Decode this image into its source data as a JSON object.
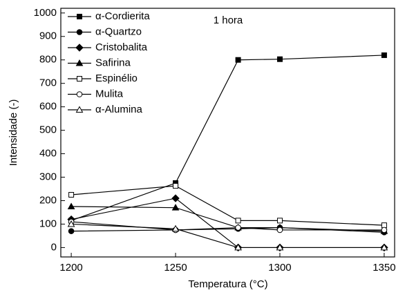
{
  "chart_data": {
    "type": "line",
    "annotation": "1 hora",
    "x_label": "Temperatura (°C)",
    "y_label": "Intensidade (-)",
    "x": [
      1200,
      1250,
      1280,
      1300,
      1350
    ],
    "series": [
      {
        "name": "α-Cordierita",
        "color": "#000000",
        "marker": "square",
        "filled": true,
        "values": [
          115,
          275,
          800,
          803,
          820
        ]
      },
      {
        "name": "α-Quartzo",
        "color": "#000000",
        "marker": "circle",
        "filled": true,
        "values": [
          70,
          75,
          80,
          85,
          65
        ]
      },
      {
        "name": "Cristobalita",
        "color": "#000000",
        "marker": "diamond",
        "filled": true,
        "values": [
          120,
          210,
          0,
          0,
          0
        ]
      },
      {
        "name": "Safirina",
        "color": "#000000",
        "marker": "triangle",
        "filled": true,
        "values": [
          175,
          170,
          85,
          85,
          70
        ]
      },
      {
        "name": "Espinélio",
        "color": "#000000",
        "marker": "square",
        "filled": false,
        "values": [
          225,
          263,
          115,
          115,
          95
        ]
      },
      {
        "name": "Mulita",
        "color": "#000000",
        "marker": "circle",
        "filled": false,
        "values": [
          110,
          75,
          85,
          75,
          75
        ]
      },
      {
        "name": "α-Alumina",
        "color": "#000000",
        "marker": "triangle",
        "filled": false,
        "values": [
          100,
          80,
          0,
          0,
          0
        ]
      }
    ],
    "xlim": [
      1195,
      1355
    ],
    "ylim": [
      -40,
      1020
    ],
    "xticks": [
      1200,
      1250,
      1300,
      1350
    ],
    "yticks": [
      0,
      100,
      200,
      300,
      400,
      500,
      600,
      700,
      800,
      900,
      1000
    ],
    "legend": "upper-left"
  }
}
